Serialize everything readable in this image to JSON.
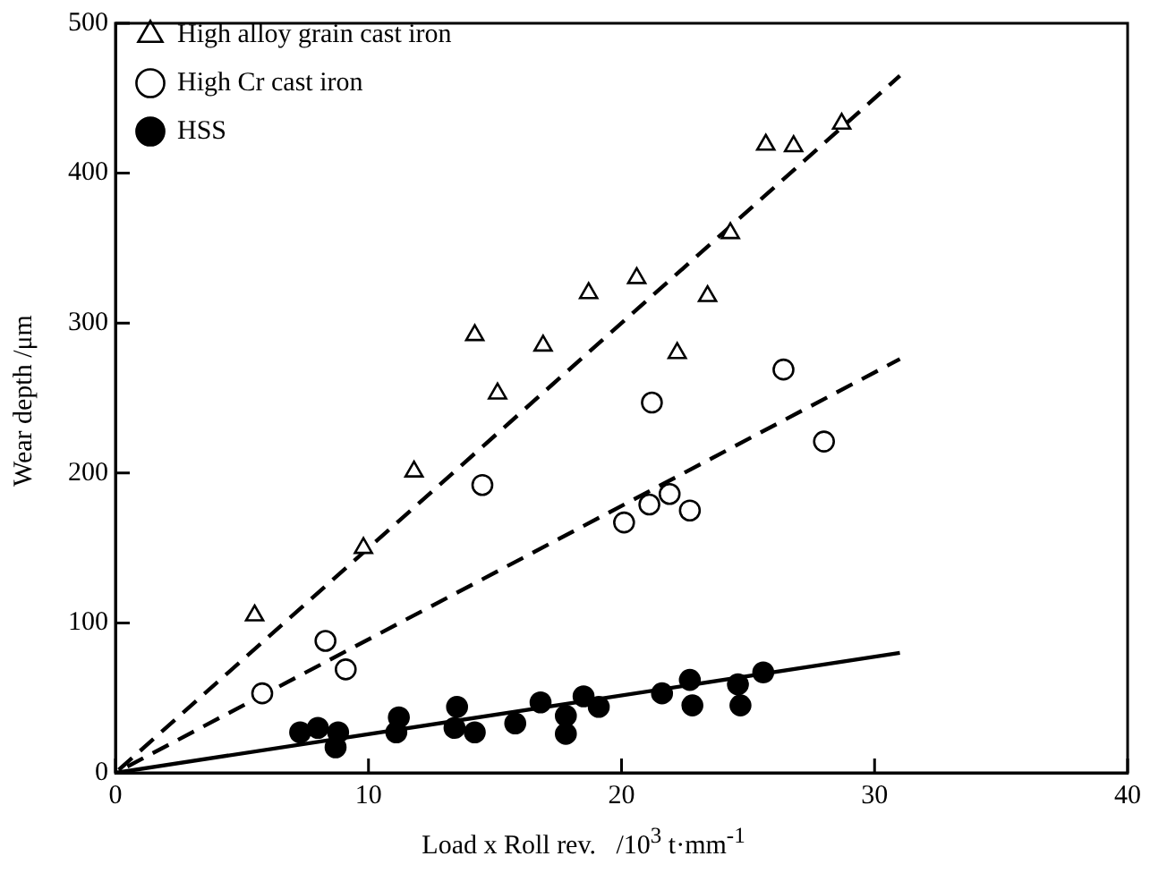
{
  "chart_data": {
    "type": "scatter",
    "xlabel": "Load x Roll rev.   /10$^{3}$ t·mm$^{-1}$",
    "ylabel": "Wear depth /μm",
    "xlim": [
      0,
      40
    ],
    "xticks": [
      0,
      10,
      20,
      30,
      40
    ],
    "ylim": [
      0,
      500
    ],
    "yticks": [
      0,
      100,
      200,
      300,
      400,
      500
    ],
    "grid": false,
    "legend": "top left",
    "series": [
      {
        "name": "High alloy grain cast iron",
        "color": "#000000",
        "marker": "triangle",
        "x": [
          5.5,
          9.8,
          11.8,
          14.2,
          15.1,
          16.9,
          18.7,
          20.6,
          22.2,
          23.4,
          24.3,
          25.7,
          26.8,
          28.7
        ],
        "values": [
          105,
          150,
          201,
          292,
          253,
          285,
          320,
          330,
          280,
          318,
          360,
          419,
          418,
          433
        ]
      },
      {
        "name": "High Cr cast iron",
        "color": "#000000",
        "marker": "circle",
        "x": [
          5.8,
          8.3,
          9.1,
          14.5,
          20.1,
          21.1,
          21.2,
          21.9,
          22.7,
          26.4,
          28.0
        ],
        "values": [
          53,
          88,
          69,
          192,
          167,
          179,
          247,
          186,
          175,
          269,
          221
        ]
      },
      {
        "name": "HSS",
        "color": "#000000",
        "marker": "circle",
        "x": [
          7.3,
          8.0,
          8.8,
          8.7,
          11.2,
          11.1,
          13.5,
          13.4,
          14.2,
          15.8,
          16.8,
          17.8,
          17.8,
          18.5,
          19.1,
          21.6,
          22.7,
          22.8,
          24.6,
          24.7,
          25.6
        ],
        "values": [
          27,
          30,
          27,
          17,
          37,
          27,
          44,
          30,
          27,
          33,
          47,
          38,
          26,
          51,
          44,
          53,
          62,
          45,
          59,
          45,
          67
        ]
      },
      {
        "type": "line",
        "color": "#000000",
        "marker": "none",
        "line_style": "dashed",
        "x": [
          0,
          31
        ],
        "values": [
          0,
          465
        ]
      },
      {
        "type": "line",
        "color": "#000000",
        "marker": "none",
        "line_style": "dashed",
        "x": [
          0,
          31
        ],
        "values": [
          0,
          276
        ]
      },
      {
        "type": "line",
        "color": "#000000",
        "marker": "none",
        "line_style": "solid",
        "x": [
          0,
          31
        ],
        "values": [
          0,
          80
        ]
      }
    ]
  }
}
